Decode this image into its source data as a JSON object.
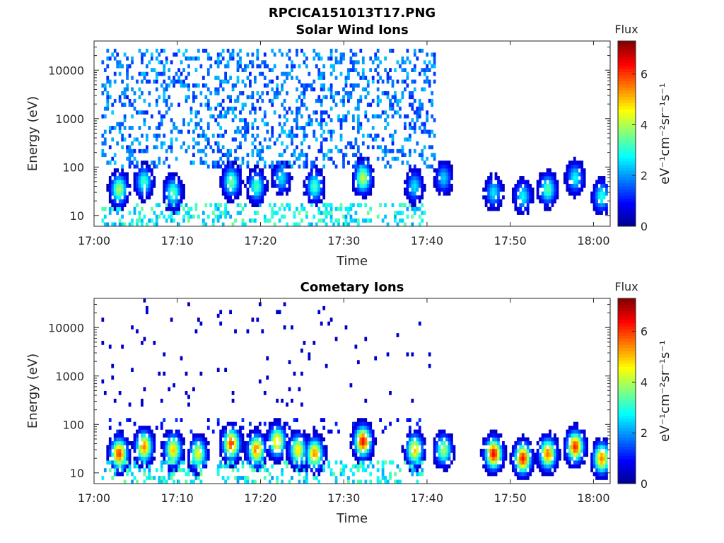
{
  "figure_title": "RPCICA151013T17.PNG",
  "colors": {
    "colormap": [
      "#00008f",
      "#0000ff",
      "#0080ff",
      "#00ffff",
      "#80ff80",
      "#ffff00",
      "#ff8000",
      "#ff0000",
      "#800000"
    ],
    "axis": "#262626",
    "background": "#ffffff"
  },
  "chart_data": [
    {
      "type": "heatmap",
      "title": "Solar Wind Ions",
      "xlabel": "Time",
      "ylabel": "Energy (eV)",
      "x_ticks": [
        "17:00",
        "17:10",
        "17:20",
        "17:30",
        "17:40",
        "17:50",
        "18:00"
      ],
      "x_range_minutes": [
        0,
        62
      ],
      "y_scale": "log",
      "y_ticks": [
        "10",
        "100",
        "1000",
        "10000"
      ],
      "y_range": [
        6,
        40000
      ],
      "colorbar": {
        "title": "Flux",
        "label": "eV⁻¹cm⁻²sr⁻¹s⁻¹",
        "ticks": [
          "0",
          "2",
          "4",
          "6"
        ],
        "range": [
          0,
          7.3
        ]
      },
      "bursts": [
        {
          "t": 3.0,
          "e": 35,
          "peak": 4.0
        },
        {
          "t": 6.0,
          "e": 50,
          "peak": 3.2
        },
        {
          "t": 9.5,
          "e": 30,
          "peak": 3.4
        },
        {
          "t": 16.5,
          "e": 50,
          "peak": 3.6
        },
        {
          "t": 19.5,
          "e": 40,
          "peak": 3.3
        },
        {
          "t": 22.5,
          "e": 60,
          "peak": 2.6
        },
        {
          "t": 26.5,
          "e": 40,
          "peak": 3.3
        },
        {
          "t": 32.3,
          "e": 60,
          "peak": 4.2
        },
        {
          "t": 38.5,
          "e": 40,
          "peak": 2.6
        },
        {
          "t": 42.0,
          "e": 60,
          "peak": 2.4
        },
        {
          "t": 48.0,
          "e": 30,
          "peak": 2.6
        },
        {
          "t": 51.5,
          "e": 25,
          "peak": 2.8
        },
        {
          "t": 54.5,
          "e": 35,
          "peak": 3.4
        },
        {
          "t": 57.8,
          "e": 60,
          "peak": 2.8
        },
        {
          "t": 61.0,
          "e": 25,
          "peak": 3.0
        }
      ],
      "background_flux": {
        "t_end": 41,
        "e_min": 100,
        "e_max": 30000,
        "level": 2.2
      }
    },
    {
      "type": "heatmap",
      "title": "Cometary Ions",
      "xlabel": "Time",
      "ylabel": "Energy (eV)",
      "x_ticks": [
        "17:00",
        "17:10",
        "17:20",
        "17:30",
        "17:40",
        "17:50",
        "18:00"
      ],
      "x_range_minutes": [
        0,
        62
      ],
      "y_scale": "log",
      "y_ticks": [
        "10",
        "100",
        "1000",
        "10000"
      ],
      "y_range": [
        6,
        40000
      ],
      "colorbar": {
        "title": "Flux",
        "label": "eV⁻¹cm⁻²sr⁻¹s⁻¹",
        "ticks": [
          "0",
          "2",
          "4",
          "6"
        ],
        "range": [
          0,
          7.3
        ]
      },
      "bursts": [
        {
          "t": 3.0,
          "e": 25,
          "peak": 6.0
        },
        {
          "t": 6.0,
          "e": 35,
          "peak": 5.5
        },
        {
          "t": 9.5,
          "e": 30,
          "peak": 5.0
        },
        {
          "t": 12.5,
          "e": 25,
          "peak": 4.5
        },
        {
          "t": 16.5,
          "e": 40,
          "peak": 6.0
        },
        {
          "t": 19.5,
          "e": 30,
          "peak": 5.6
        },
        {
          "t": 22.0,
          "e": 45,
          "peak": 5.2
        },
        {
          "t": 24.5,
          "e": 30,
          "peak": 4.8
        },
        {
          "t": 26.5,
          "e": 25,
          "peak": 5.4
        },
        {
          "t": 32.3,
          "e": 45,
          "peak": 6.4
        },
        {
          "t": 38.5,
          "e": 30,
          "peak": 5.0
        },
        {
          "t": 42.0,
          "e": 30,
          "peak": 4.0
        },
        {
          "t": 48.0,
          "e": 25,
          "peak": 6.5
        },
        {
          "t": 51.5,
          "e": 20,
          "peak": 6.3
        },
        {
          "t": 54.5,
          "e": 25,
          "peak": 5.6
        },
        {
          "t": 57.8,
          "e": 35,
          "peak": 6.2
        },
        {
          "t": 61.0,
          "e": 20,
          "peak": 5.5
        }
      ],
      "background_flux": {
        "t_end": 40,
        "e_min": 60,
        "e_max": 130,
        "level": 1.2
      }
    }
  ]
}
